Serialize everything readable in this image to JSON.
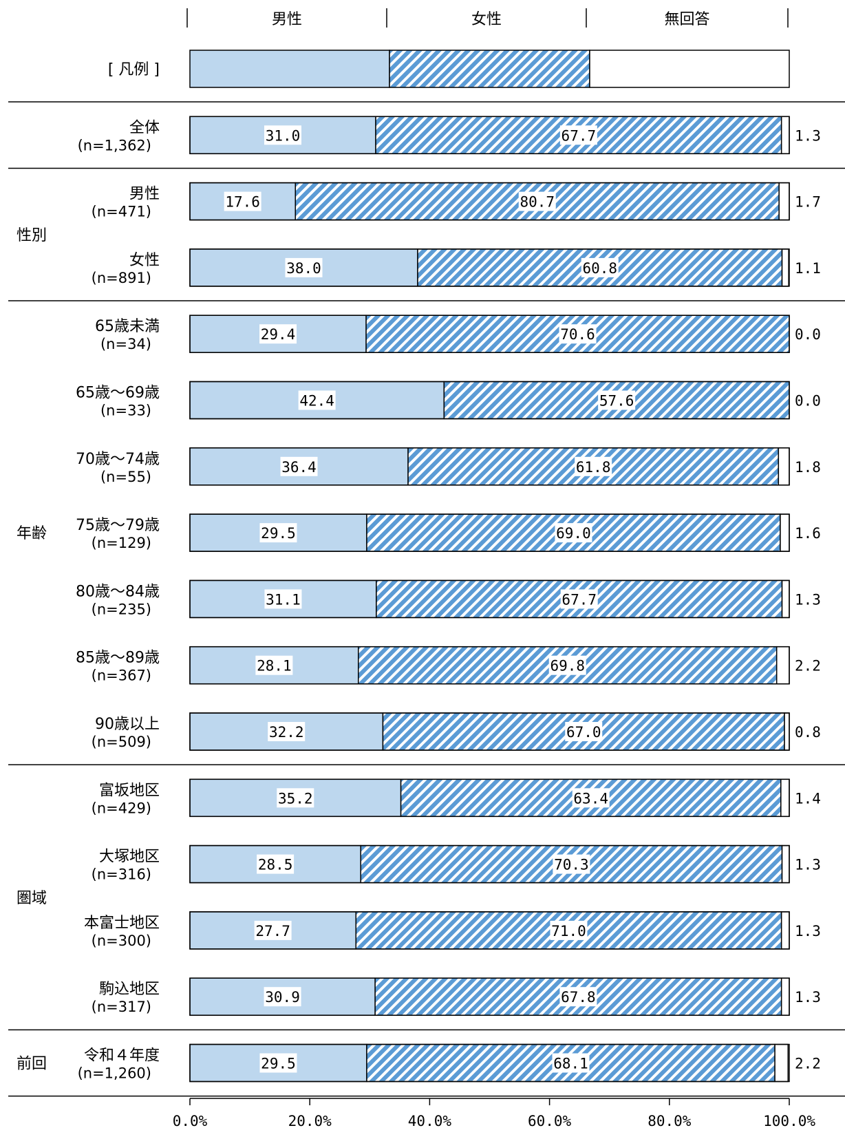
{
  "legend_label": "[ 凡例 ]",
  "chart_data": {
    "type": "bar",
    "orientation": "horizontal",
    "stacked": true,
    "percent": true,
    "series": [
      {
        "name": "男性",
        "color": "#bdd7ee",
        "pattern": "solid"
      },
      {
        "name": "女性",
        "color": "#5b9bd5",
        "pattern": "diagonal-stripes"
      },
      {
        "name": "無回答",
        "color": "#ffffff",
        "pattern": "solid"
      }
    ],
    "groups": [
      {
        "label": "",
        "rows": [
          {
            "label": "全体",
            "n": "(n=1,362)",
            "values": [
              31.0,
              67.7,
              1.3
            ]
          }
        ]
      },
      {
        "label": "性別",
        "rows": [
          {
            "label": "男性",
            "n": "(n=471)",
            "values": [
              17.6,
              80.7,
              1.7
            ]
          },
          {
            "label": "女性",
            "n": "(n=891)",
            "values": [
              38.0,
              60.8,
              1.1
            ]
          }
        ]
      },
      {
        "label": "年齢",
        "rows": [
          {
            "label": "65歳未満",
            "n": "(n=34)",
            "values": [
              29.4,
              70.6,
              0.0
            ]
          },
          {
            "label": "65歳～69歳",
            "n": "(n=33)",
            "values": [
              42.4,
              57.6,
              0.0
            ]
          },
          {
            "label": "70歳～74歳",
            "n": "(n=55)",
            "values": [
              36.4,
              61.8,
              1.8
            ]
          },
          {
            "label": "75歳～79歳",
            "n": "(n=129)",
            "values": [
              29.5,
              69.0,
              1.6
            ]
          },
          {
            "label": "80歳～84歳",
            "n": "(n=235)",
            "values": [
              31.1,
              67.7,
              1.3
            ]
          },
          {
            "label": "85歳～89歳",
            "n": "(n=367)",
            "values": [
              28.1,
              69.8,
              2.2
            ]
          },
          {
            "label": "90歳以上",
            "n": "(n=509)",
            "values": [
              32.2,
              67.0,
              0.8
            ]
          }
        ]
      },
      {
        "label": "圏域",
        "rows": [
          {
            "label": "富坂地区",
            "n": "(n=429)",
            "values": [
              35.2,
              63.4,
              1.4
            ]
          },
          {
            "label": "大塚地区",
            "n": "(n=316)",
            "values": [
              28.5,
              70.3,
              1.3
            ]
          },
          {
            "label": "本富士地区",
            "n": "(n=300)",
            "values": [
              27.7,
              71.0,
              1.3
            ]
          },
          {
            "label": "駒込地区",
            "n": "(n=317)",
            "values": [
              30.9,
              67.8,
              1.3
            ]
          }
        ]
      },
      {
        "label": "前回",
        "rows": [
          {
            "label": "令和４年度",
            "n": "(n=1,260)",
            "values": [
              29.5,
              68.1,
              2.2
            ]
          }
        ]
      }
    ],
    "x_ticks": [
      "0.0%",
      "20.0%",
      "40.0%",
      "60.0%",
      "80.0%",
      "100.0%"
    ],
    "xlim": [
      0,
      100
    ]
  }
}
